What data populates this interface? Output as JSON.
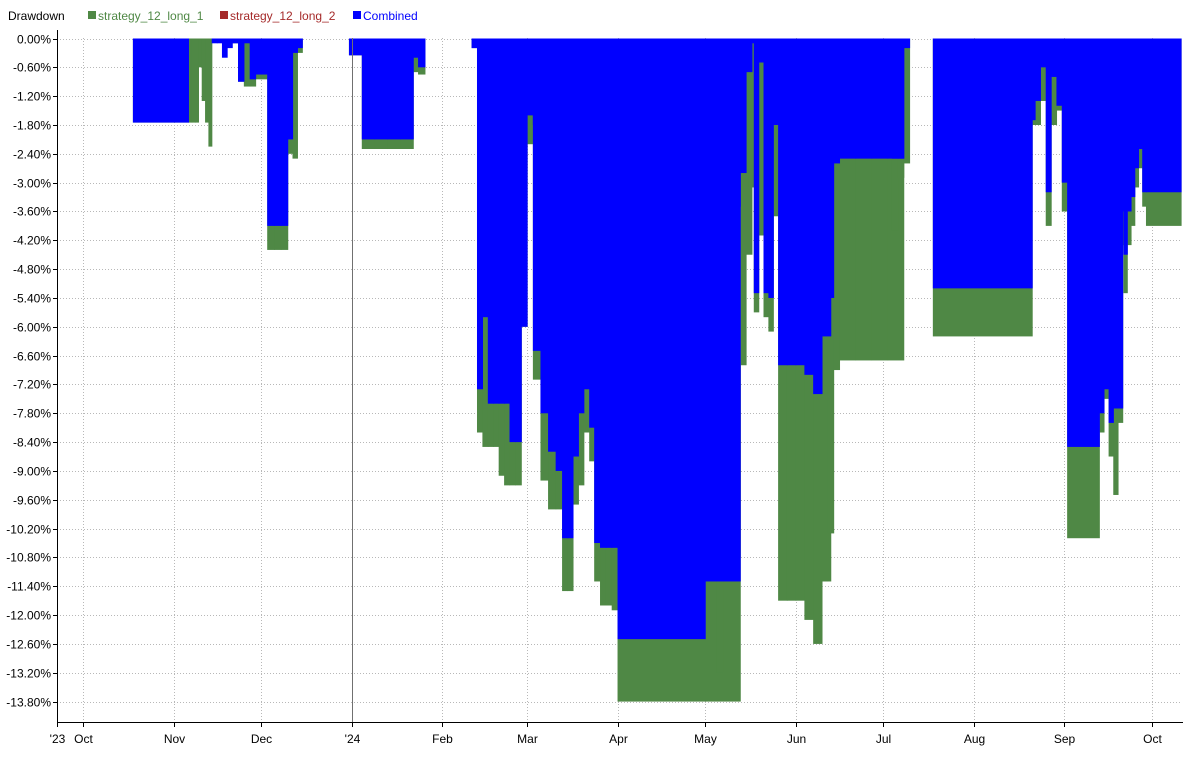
{
  "chart_data": {
    "type": "area",
    "title": "Drawdown",
    "legend": [
      {
        "name": "strategy_12_long_1",
        "color": "#4f8845"
      },
      {
        "name": "strategy_12_long_2",
        "color": "#a52a2a"
      },
      {
        "name": "Combined",
        "color": "#0000ff"
      }
    ],
    "legend_position": "top-left",
    "grid": true,
    "ylim": [
      -14.2,
      0.0
    ],
    "yticks": [
      "0.00%",
      "-0.60%",
      "-1.20%",
      "-1.80%",
      "-2.40%",
      "-3.00%",
      "-3.60%",
      "-4.20%",
      "-4.80%",
      "-5.40%",
      "-6.00%",
      "-6.60%",
      "-7.20%",
      "-7.80%",
      "-8.40%",
      "-9.00%",
      "-9.60%",
      "-10.20%",
      "-10.80%",
      "-11.40%",
      "-12.00%",
      "-12.60%",
      "-13.20%",
      "-13.80%"
    ],
    "x_range": [
      "2023-09-22",
      "2024-10-11"
    ],
    "xticks": [
      {
        "label": "'23",
        "date": "2023-09-22"
      },
      {
        "label": "Oct",
        "date": "2023-10-01"
      },
      {
        "label": "Nov",
        "date": "2023-11-01"
      },
      {
        "label": "Dec",
        "date": "2023-12-01"
      },
      {
        "label": "'24",
        "date": "2024-01-01"
      },
      {
        "label": "Feb",
        "date": "2024-02-01"
      },
      {
        "label": "Mar",
        "date": "2024-03-01"
      },
      {
        "label": "Apr",
        "date": "2024-04-01"
      },
      {
        "label": "May",
        "date": "2024-05-01"
      },
      {
        "label": "Jun",
        "date": "2024-06-01"
      },
      {
        "label": "Jul",
        "date": "2024-07-01"
      },
      {
        "label": "Aug",
        "date": "2024-08-01"
      },
      {
        "label": "Sep",
        "date": "2024-09-01"
      },
      {
        "label": "Oct",
        "date": "2024-10-01"
      }
    ],
    "series": [
      {
        "name": "strategy_12_long_1",
        "segments": [
          {
            "start": "2023-10-18",
            "end": "2023-11-06",
            "values": [
              -1.75
            ]
          },
          {
            "start": "2023-11-06",
            "end": "2023-11-14",
            "values": [
              -1.75,
              -1.75,
              -1.75,
              -0.6,
              -1.3,
              -1.75,
              -2.25
            ]
          },
          {
            "start": "2023-11-21",
            "end": "2023-11-27",
            "values": [
              -0.1,
              -0.9,
              -1.0
            ]
          },
          {
            "start": "2023-11-27",
            "end": "2023-12-05",
            "values": [
              -1.0,
              -0.85,
              -0.85,
              -0.85
            ]
          },
          {
            "start": "2023-12-03",
            "end": "2023-12-10",
            "values": [
              -4.4,
              -4.4,
              -4.4
            ]
          },
          {
            "start": "2023-12-10",
            "end": "2023-12-15",
            "values": [
              -2.4,
              -2.5,
              -0.3
            ]
          },
          {
            "start": "2023-12-31",
            "end": "2024-01-22",
            "values": [
              -0.35,
              -2.3,
              -2.3,
              -2.3,
              -2.3
            ]
          },
          {
            "start": "2024-01-19",
            "end": "2024-01-26",
            "values": [
              -1.7,
              -0.7,
              -0.75
            ]
          },
          {
            "start": "2024-02-11",
            "end": "2024-02-24",
            "values": [
              -0.2,
              -8.2,
              -8.5,
              -8.5,
              -8.5,
              -9.1,
              -9.3
            ]
          },
          {
            "start": "2024-02-24",
            "end": "2024-03-05",
            "values": [
              -9.3,
              -9.3,
              -6.0,
              -2.2,
              -1.7
            ]
          },
          {
            "start": "2024-03-03",
            "end": "2024-03-16",
            "values": [
              -7.1,
              -9.2,
              -9.8,
              -9.8,
              -10.3
            ]
          },
          {
            "start": "2024-03-13",
            "end": "2024-03-26",
            "values": [
              -11.5,
              -11.5,
              -9.7,
              -9.3,
              -8.2,
              -8.8,
              -10.3
            ]
          },
          {
            "start": "2024-03-24",
            "end": "2024-04-01",
            "values": [
              -11.3,
              -11.8,
              -11.8,
              -11.9
            ]
          },
          {
            "start": "2024-04-01",
            "end": "2024-05-13",
            "values": [
              -13.8
            ]
          },
          {
            "start": "2024-05-05",
            "end": "2024-05-17",
            "values": [
              -13.2,
              -11.0,
              -11.0,
              -10.8,
              -6.8,
              -4.5
            ]
          },
          {
            "start": "2024-05-16",
            "end": "2024-05-26",
            "values": [
              -3.1,
              -5.7,
              -4.1,
              -5.8,
              -6.1,
              -3.7
            ]
          },
          {
            "start": "2024-05-26",
            "end": "2024-06-13",
            "values": [
              -11.7,
              -11.7,
              -11.7,
              -12.1,
              -12.6,
              -11.3
            ]
          },
          {
            "start": "2024-06-10",
            "end": "2024-06-16",
            "values": [
              -11.3,
              -10.3,
              -6.9
            ]
          },
          {
            "start": "2024-06-16",
            "end": "2024-07-08",
            "values": [
              -6.7,
              -6.7,
              -6.7,
              -6.7
            ]
          },
          {
            "start": "2024-07-04",
            "end": "2024-07-10",
            "values": [
              -4.0,
              -2.9,
              -2.6
            ]
          },
          {
            "start": "2024-07-18",
            "end": "2024-08-21",
            "values": [
              -6.2
            ]
          },
          {
            "start": "2024-08-18",
            "end": "2024-08-22",
            "values": [
              -3.0,
              -1.8
            ]
          },
          {
            "start": "2024-08-22",
            "end": "2024-09-02",
            "values": [
              -1.8,
              -1.3,
              -3.9,
              -1.8,
              -1.5,
              -3.6
            ]
          },
          {
            "start": "2024-09-02",
            "end": "2024-09-13",
            "values": [
              -10.4
            ]
          },
          {
            "start": "2024-09-13",
            "end": "2024-09-21",
            "values": [
              -8.2,
              -7.5,
              -8.7,
              -9.5,
              -8.0
            ]
          },
          {
            "start": "2024-09-20",
            "end": "2024-09-29",
            "values": [
              -4.3,
              -5.3,
              -4.3,
              -3.9,
              -3.1,
              -2.7,
              -3.5
            ]
          },
          {
            "start": "2024-09-29",
            "end": "2024-10-11",
            "values": [
              -3.9
            ]
          }
        ]
      },
      {
        "name": "Combined",
        "segments": [
          {
            "start": "2023-10-18",
            "end": "2023-11-06",
            "values": [
              -1.75
            ]
          },
          {
            "start": "2023-11-14",
            "end": "2023-11-21",
            "values": [
              -0.1,
              -0.1,
              -0.4,
              -0.2
            ]
          },
          {
            "start": "2023-11-21",
            "end": "2023-11-27",
            "values": [
              -0.1,
              -0.9,
              -0.1
            ]
          },
          {
            "start": "2023-11-27",
            "end": "2023-12-05",
            "values": [
              -0.85,
              -0.75,
              -0.75,
              -0.75
            ]
          },
          {
            "start": "2023-12-03",
            "end": "2023-12-10",
            "values": [
              -3.9,
              -3.9,
              -3.9
            ]
          },
          {
            "start": "2023-12-10",
            "end": "2023-12-15",
            "values": [
              -2.1,
              -0.3,
              -0.2
            ]
          },
          {
            "start": "2023-12-31",
            "end": "2024-01-22",
            "values": [
              -0.35,
              -2.1,
              -2.1,
              -2.1,
              -2.1
            ]
          },
          {
            "start": "2024-01-19",
            "end": "2024-01-26",
            "values": [
              -1.5,
              -0.4,
              -0.6
            ]
          },
          {
            "start": "2024-02-11",
            "end": "2024-02-24",
            "values": [
              -0.2,
              -7.3,
              -5.8,
              -7.6,
              -7.6,
              -7.6,
              -7.6
            ]
          },
          {
            "start": "2024-02-24",
            "end": "2024-03-05",
            "values": [
              -8.4,
              -8.4,
              -6.0,
              -1.6,
              -1.8
            ]
          },
          {
            "start": "2024-03-03",
            "end": "2024-03-16",
            "values": [
              -6.5,
              -7.8,
              -8.6,
              -9.0,
              -9.0
            ]
          },
          {
            "start": "2024-03-13",
            "end": "2024-03-26",
            "values": [
              -10.4,
              -10.4,
              -8.7,
              -7.8,
              -7.3,
              -8.1,
              -8.3
            ]
          },
          {
            "start": "2024-03-24",
            "end": "2024-04-01",
            "values": [
              -10.5,
              -10.6,
              -10.6,
              -10.6
            ]
          },
          {
            "start": "2024-04-01",
            "end": "2024-05-01",
            "values": [
              -12.5
            ]
          },
          {
            "start": "2024-05-01",
            "end": "2024-05-13",
            "values": [
              -11.3
            ]
          },
          {
            "start": "2024-05-05",
            "end": "2024-05-17",
            "values": [
              -3.5,
              -3.5,
              -3.5,
              -3.5,
              -2.8,
              -0.7
            ]
          },
          {
            "start": "2024-05-16",
            "end": "2024-05-26",
            "values": [
              -0.1,
              -5.3,
              -0.5,
              -5.3,
              -5.4,
              -1.8
            ]
          },
          {
            "start": "2024-05-26",
            "end": "2024-06-13",
            "values": [
              -6.8,
              -6.8,
              -6.8,
              -7.0,
              -7.4,
              -6.2
            ]
          },
          {
            "start": "2024-06-10",
            "end": "2024-06-16",
            "values": [
              -5.5,
              -5.4,
              -2.6
            ]
          },
          {
            "start": "2024-06-16",
            "end": "2024-07-08",
            "values": [
              -2.5,
              -2.5,
              -2.5,
              -2.5
            ]
          },
          {
            "start": "2024-07-04",
            "end": "2024-07-10",
            "values": [
              -2.5,
              -2.5,
              -0.2
            ]
          },
          {
            "start": "2024-07-18",
            "end": "2024-08-21",
            "values": [
              -5.2
            ]
          },
          {
            "start": "2024-08-18",
            "end": "2024-08-22",
            "values": [
              -2.4,
              -1.7
            ]
          },
          {
            "start": "2024-08-22",
            "end": "2024-09-02",
            "values": [
              -1.3,
              -0.6,
              -3.2,
              -0.8,
              -1.4,
              -3.0
            ]
          },
          {
            "start": "2024-09-02",
            "end": "2024-09-13",
            "values": [
              -8.5
            ]
          },
          {
            "start": "2024-09-13",
            "end": "2024-09-21",
            "values": [
              -7.8,
              -7.3,
              -8.0,
              -7.7,
              -7.7
            ]
          },
          {
            "start": "2024-09-20",
            "end": "2024-09-29",
            "values": [
              -3.6,
              -4.5,
              -3.6,
              -3.3,
              -2.7,
              -2.3,
              -3.2
            ]
          },
          {
            "start": "2024-09-29",
            "end": "2024-10-11",
            "values": [
              -3.2
            ]
          }
        ]
      }
    ]
  }
}
